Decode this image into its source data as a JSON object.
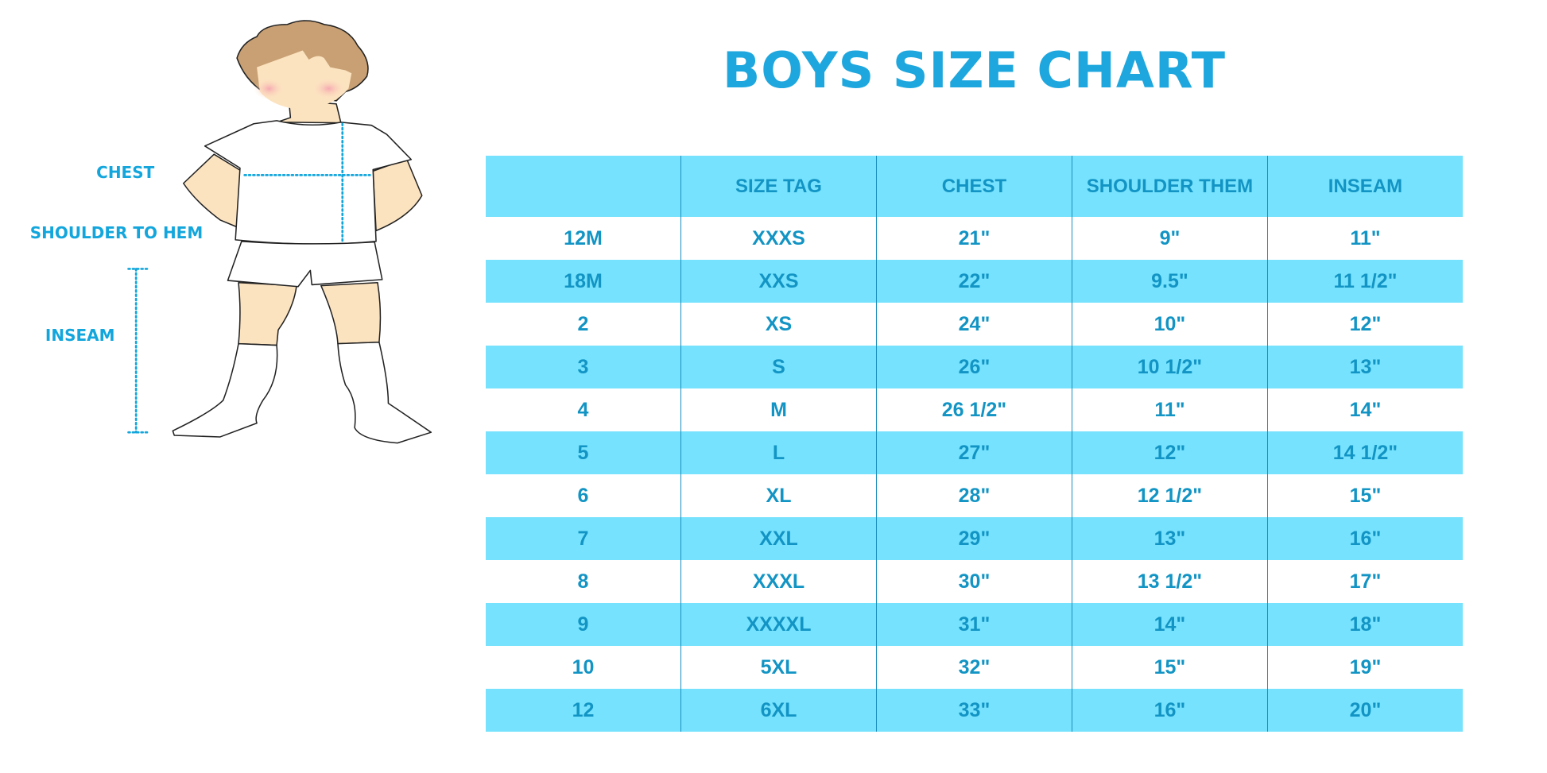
{
  "title": "BOYS SIZE CHART",
  "colors": {
    "accent": "#1ea7de",
    "row_fill": "#76e2fd",
    "text": "#1294c4"
  },
  "figure": {
    "labels": {
      "chest": "CHEST",
      "shoulder_to_hem": "SHOULDER TO HEM",
      "inseam": "INSEAM"
    }
  },
  "table": {
    "headers": [
      "",
      "SIZE TAG",
      "CHEST",
      "SHOULDER THEM",
      "INSEAM"
    ],
    "rows": [
      [
        "12M",
        "XXXS",
        "21\"",
        "9\"",
        "11\""
      ],
      [
        "18M",
        "XXS",
        "22\"",
        "9.5\"",
        "11 1/2\""
      ],
      [
        "2",
        "XS",
        "24\"",
        "10\"",
        "12\""
      ],
      [
        "3",
        "S",
        "26\"",
        "10 1/2\"",
        "13\""
      ],
      [
        "4",
        "M",
        "26 1/2\"",
        "11\"",
        "14\""
      ],
      [
        "5",
        "L",
        "27\"",
        "12\"",
        "14 1/2\""
      ],
      [
        "6",
        "XL",
        "28\"",
        "12 1/2\"",
        "15\""
      ],
      [
        "7",
        "XXL",
        "29\"",
        "13\"",
        "16\""
      ],
      [
        "8",
        "XXXL",
        "30\"",
        "13 1/2\"",
        "17\""
      ],
      [
        "9",
        "XXXXL",
        "31\"",
        "14\"",
        "18\""
      ],
      [
        "10",
        "5XL",
        "32\"",
        "15\"",
        "19\""
      ],
      [
        "12",
        "6XL",
        "33\"",
        "16\"",
        "20\""
      ]
    ]
  }
}
